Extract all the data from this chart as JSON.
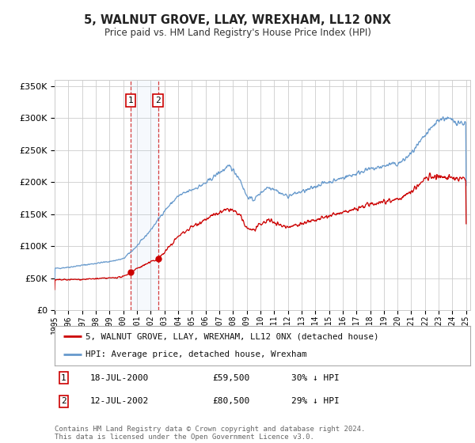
{
  "title": "5, WALNUT GROVE, LLAY, WREXHAM, LL12 0NX",
  "subtitle": "Price paid vs. HM Land Registry's House Price Index (HPI)",
  "ylim": [
    0,
    360000
  ],
  "yticks": [
    0,
    50000,
    100000,
    150000,
    200000,
    250000,
    300000,
    350000
  ],
  "xlim_start": 1995.0,
  "xlim_end": 2025.3,
  "sale1_date": 2000.54,
  "sale1_price": 59500,
  "sale1_label": "1",
  "sale2_date": 2002.54,
  "sale2_price": 80500,
  "sale2_label": "2",
  "legend_red": "5, WALNUT GROVE, LLAY, WREXHAM, LL12 0NX (detached house)",
  "legend_blue": "HPI: Average price, detached house, Wrexham",
  "footer": "Contains HM Land Registry data © Crown copyright and database right 2024.\nThis data is licensed under the Open Government Licence v3.0.",
  "background_color": "#ffffff",
  "grid_color": "#cccccc",
  "red_color": "#cc0000",
  "blue_color": "#6699cc",
  "hpi_waypoints": [
    [
      1995.0,
      65000
    ],
    [
      1996.0,
      67000
    ],
    [
      1997.0,
      70000
    ],
    [
      1998.0,
      73000
    ],
    [
      1999.0,
      76000
    ],
    [
      2000.0,
      80000
    ],
    [
      2001.0,
      100000
    ],
    [
      2002.0,
      125000
    ],
    [
      2003.0,
      155000
    ],
    [
      2004.0,
      178000
    ],
    [
      2005.0,
      188000
    ],
    [
      2006.0,
      198000
    ],
    [
      2007.0,
      215000
    ],
    [
      2007.8,
      225000
    ],
    [
      2008.5,
      205000
    ],
    [
      2009.0,
      178000
    ],
    [
      2009.5,
      172000
    ],
    [
      2010.0,
      183000
    ],
    [
      2010.5,
      192000
    ],
    [
      2011.0,
      190000
    ],
    [
      2011.5,
      182000
    ],
    [
      2012.0,
      178000
    ],
    [
      2012.5,
      182000
    ],
    [
      2013.0,
      185000
    ],
    [
      2013.5,
      188000
    ],
    [
      2014.0,
      193000
    ],
    [
      2014.5,
      198000
    ],
    [
      2015.0,
      200000
    ],
    [
      2015.5,
      203000
    ],
    [
      2016.0,
      207000
    ],
    [
      2016.5,
      210000
    ],
    [
      2017.0,
      213000
    ],
    [
      2017.5,
      218000
    ],
    [
      2018.0,
      220000
    ],
    [
      2018.5,
      222000
    ],
    [
      2019.0,
      225000
    ],
    [
      2019.5,
      228000
    ],
    [
      2020.0,
      228000
    ],
    [
      2020.5,
      235000
    ],
    [
      2021.0,
      245000
    ],
    [
      2021.5,
      258000
    ],
    [
      2022.0,
      272000
    ],
    [
      2022.5,
      285000
    ],
    [
      2023.0,
      298000
    ],
    [
      2023.5,
      300000
    ],
    [
      2024.0,
      296000
    ],
    [
      2024.5,
      293000
    ],
    [
      2025.0,
      292000
    ]
  ],
  "prop_waypoints": [
    [
      1995.0,
      47000
    ],
    [
      1996.0,
      47500
    ],
    [
      1997.0,
      48000
    ],
    [
      1998.0,
      49000
    ],
    [
      1999.0,
      50000
    ],
    [
      2000.0,
      52000
    ],
    [
      2000.54,
      59500
    ],
    [
      2001.0,
      65000
    ],
    [
      2002.0,
      75000
    ],
    [
      2002.54,
      80500
    ],
    [
      2003.0,
      90000
    ],
    [
      2004.0,
      115000
    ],
    [
      2005.0,
      130000
    ],
    [
      2006.0,
      142000
    ],
    [
      2007.0,
      152000
    ],
    [
      2007.8,
      158000
    ],
    [
      2008.5,
      148000
    ],
    [
      2009.0,
      128000
    ],
    [
      2009.5,
      125000
    ],
    [
      2010.0,
      133000
    ],
    [
      2010.5,
      140000
    ],
    [
      2011.0,
      138000
    ],
    [
      2011.5,
      132000
    ],
    [
      2012.0,
      130000
    ],
    [
      2012.5,
      133000
    ],
    [
      2013.0,
      135000
    ],
    [
      2013.5,
      138000
    ],
    [
      2014.0,
      140000
    ],
    [
      2014.5,
      143000
    ],
    [
      2015.0,
      147000
    ],
    [
      2015.5,
      150000
    ],
    [
      2016.0,
      152000
    ],
    [
      2016.5,
      155000
    ],
    [
      2017.0,
      158000
    ],
    [
      2017.5,
      162000
    ],
    [
      2018.0,
      165000
    ],
    [
      2018.5,
      168000
    ],
    [
      2019.0,
      170000
    ],
    [
      2019.5,
      172000
    ],
    [
      2020.0,
      173000
    ],
    [
      2020.5,
      178000
    ],
    [
      2021.0,
      185000
    ],
    [
      2021.5,
      195000
    ],
    [
      2022.0,
      205000
    ],
    [
      2022.5,
      210000
    ],
    [
      2023.0,
      208000
    ],
    [
      2023.5,
      207000
    ],
    [
      2024.0,
      206000
    ],
    [
      2024.5,
      205000
    ],
    [
      2025.0,
      204000
    ]
  ]
}
